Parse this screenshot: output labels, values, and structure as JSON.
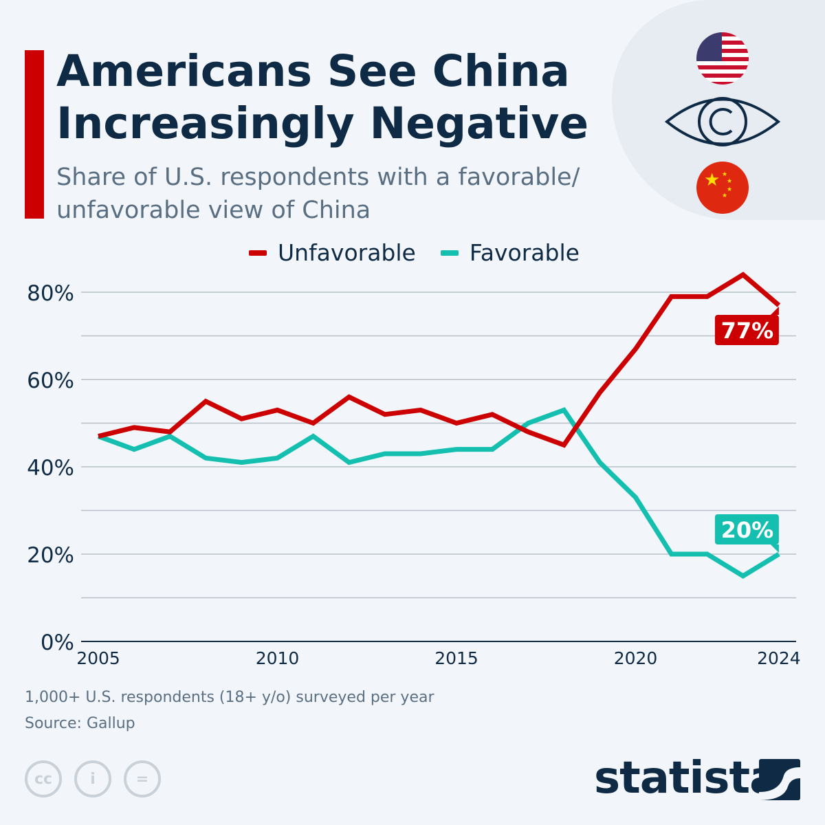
{
  "header": {
    "title": "Americans See China Increasingly Negative",
    "subtitle": "Share of U.S. respondents with a favorable/ unfavorable view of China"
  },
  "icons": [
    "us-flag-icon",
    "eye-icon",
    "china-flag-icon",
    "cc-icon",
    "attribution-icon",
    "no-derivatives-icon"
  ],
  "colors": {
    "accent": "#cc0000",
    "unfavorable": "#cc0000",
    "favorable": "#14bfb0",
    "title": "#0f2a44"
  },
  "chart_data": {
    "type": "line",
    "title": "Americans See China Increasingly Negative",
    "subtitle": "Share of U.S. respondents with a favorable/ unfavorable view of China",
    "x": [
      2005,
      2006,
      2007,
      2008,
      2009,
      2010,
      2011,
      2012,
      2013,
      2014,
      2015,
      2016,
      2017,
      2018,
      2019,
      2020,
      2021,
      2022,
      2023,
      2024
    ],
    "series": [
      {
        "name": "Unfavorable",
        "color": "#cc0000",
        "values": [
          47,
          49,
          48,
          55,
          51,
          53,
          50,
          56,
          52,
          53,
          50,
          52,
          48,
          45,
          57,
          67,
          79,
          79,
          84,
          77
        ],
        "end_label": "77%"
      },
      {
        "name": "Favorable",
        "color": "#14bfb0",
        "values": [
          47,
          44,
          47,
          42,
          41,
          42,
          47,
          41,
          43,
          43,
          44,
          44,
          50,
          53,
          41,
          33,
          20,
          20,
          15,
          20
        ],
        "end_label": "20%"
      }
    ],
    "x_ticks": [
      "2005",
      "2010",
      "2015",
      "2020",
      "2024"
    ],
    "y_ticks": [
      "0%",
      "20%",
      "40%",
      "60%",
      "80%"
    ],
    "ylim": [
      0,
      80
    ],
    "grid": true,
    "legend": "top-center"
  },
  "footer": {
    "note": "1,000+ U.S. respondents (18+ y/o) surveyed per year",
    "source": "Source: Gallup",
    "logo": "statista"
  }
}
